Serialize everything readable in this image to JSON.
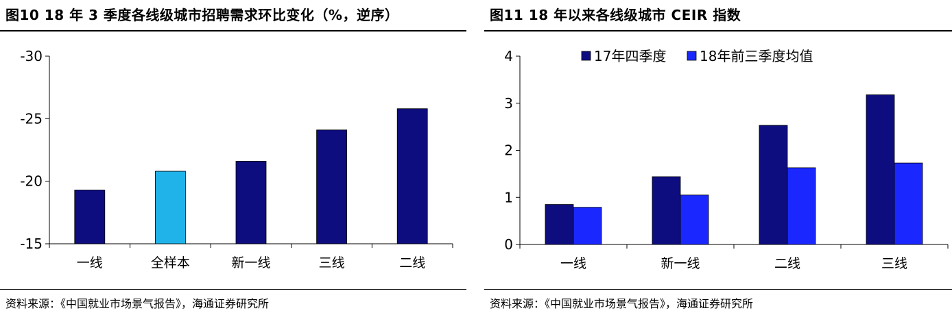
{
  "panels": [
    {
      "title": "图10 18 年 3 季度各线级城市招聘需求环比变化（%，逆序）",
      "source": "资料来源：《中国就业市场景气报告》，海通证券研究所"
    },
    {
      "title": "图11 18 年以来各线级城市 CEIR 指数",
      "source": "资料来源：《中国就业市场景气报告》，海通证券研究所"
    }
  ],
  "chart_data": [
    {
      "type": "bar",
      "title": "图10 18 年 3 季度各线级城市招聘需求环比变化（%，逆序）",
      "categories": [
        "一线",
        "全样本",
        "新一线",
        "三线",
        "二线"
      ],
      "values": [
        -19.3,
        -20.8,
        -21.6,
        -24.1,
        -25.8
      ],
      "bar_colors": [
        "#0d0d80",
        "#1fb3ea",
        "#0d0d80",
        "#0d0d80",
        "#0d0d80"
      ],
      "ylim": [
        -15,
        -30
      ],
      "yticks": [
        -30,
        -25,
        -20,
        -15
      ],
      "reversed_axis": true,
      "grid": false,
      "xlabel": "",
      "ylabel": ""
    },
    {
      "type": "bar",
      "title": "图11 18 年以来各线级城市 CEIR 指数",
      "categories": [
        "一线",
        "新一线",
        "二线",
        "三线"
      ],
      "series": [
        {
          "name": "17年四季度",
          "values": [
            0.85,
            1.44,
            2.53,
            3.18
          ],
          "color": "#0d0d80"
        },
        {
          "name": "18年前三季度均值",
          "values": [
            0.79,
            1.05,
            1.63,
            1.73
          ],
          "color": "#1a28ff"
        }
      ],
      "ylim": [
        0,
        4
      ],
      "yticks": [
        0,
        1,
        2,
        3,
        4
      ],
      "legend_position": "top",
      "grid": false,
      "xlabel": "",
      "ylabel": ""
    }
  ]
}
